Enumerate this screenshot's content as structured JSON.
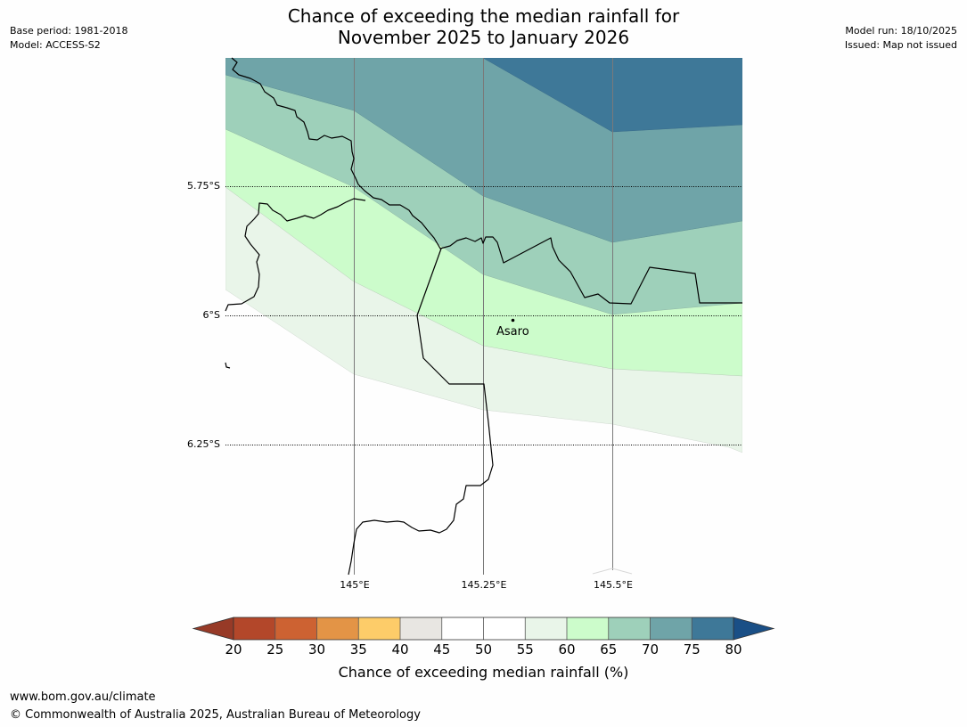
{
  "header": {
    "title_line1": "Chance of exceeding the median rainfall for",
    "title_line2": "November 2025 to January 2026",
    "base_period": "Base period: 1981-2018",
    "model": "Model: ACCESS-S2",
    "model_run": "Model run: 18/10/2025",
    "issued": "Issued: Map not issued"
  },
  "map": {
    "lat_labels": [
      "5.75°S",
      "6°S",
      "6.25°S"
    ],
    "lon_labels": [
      "145°E",
      "145.25°E",
      "145.5°E"
    ],
    "place": {
      "name": "Asaro"
    },
    "zones": [
      {
        "name": "70-75",
        "color": "#3e7898"
      },
      {
        "name": "65-70",
        "color": "#6fa4a8"
      },
      {
        "name": "60-65",
        "color": "#9ed0ba"
      },
      {
        "name": "55-60",
        "color": "#ccfccb"
      },
      {
        "name": "50-55",
        "color": "#e9f5e9"
      }
    ]
  },
  "legend": {
    "title": "Chance of exceeding median rainfall (%)",
    "ticks": [
      "20",
      "25",
      "30",
      "35",
      "40",
      "45",
      "50",
      "55",
      "60",
      "65",
      "70",
      "75",
      "80"
    ],
    "colors": [
      "#b3472a",
      "#cd6232",
      "#e39446",
      "#fdcc69",
      "#e8e6e2",
      "#ffffff",
      "#ffffff",
      "#e9f5e9",
      "#ccfccb",
      "#9ed0ba",
      "#6fa4a8",
      "#3e7898"
    ],
    "below_color": "#973a27",
    "above_color": "#1a4f86"
  },
  "footer": {
    "url": "www.bom.gov.au/climate",
    "copyright": "© Commonwealth of Australia 2025, Australian Bureau of Meteorology"
  }
}
